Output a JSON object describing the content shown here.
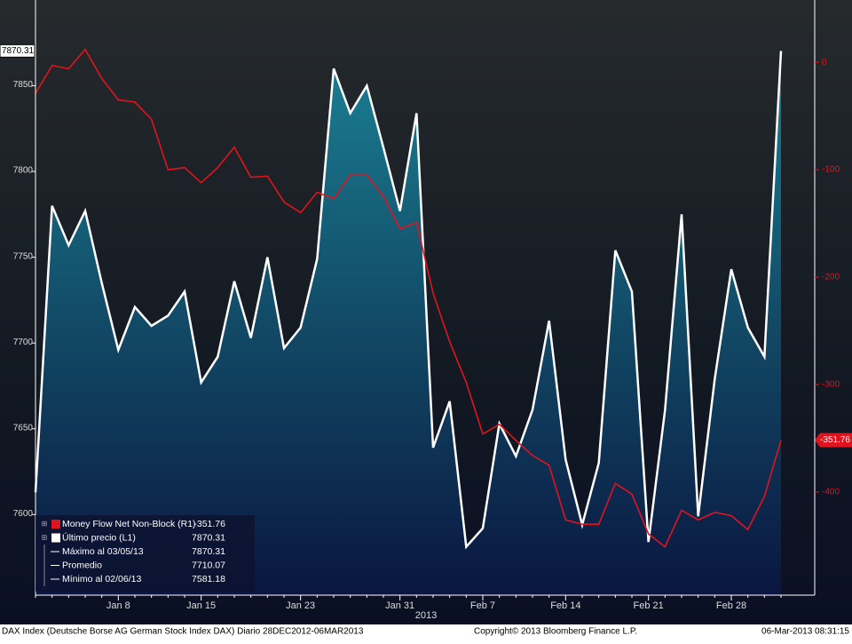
{
  "chart_data": {
    "type": "line",
    "categories": [
      null,
      null,
      null,
      null,
      null,
      "Jan 8",
      null,
      null,
      null,
      null,
      "Jan 15",
      null,
      null,
      null,
      null,
      null,
      "Jan 23",
      null,
      null,
      null,
      null,
      null,
      "Jan 31",
      null,
      null,
      null,
      null,
      "Feb 7",
      null,
      null,
      null,
      null,
      "Feb 14",
      null,
      null,
      null,
      null,
      "Feb 21",
      null,
      null,
      null,
      null,
      "Feb 28",
      null,
      null,
      null
    ],
    "year_label": "2013",
    "series": [
      {
        "name": "Money Flow Net Non-Block (R1)",
        "color": "#e0141e",
        "axis": "y2",
        "values": [
          -29,
          -3,
          -6,
          12,
          -15,
          -35,
          -37,
          -53,
          -100,
          -98,
          -112,
          -98,
          -79,
          -107,
          -106,
          -130,
          -140,
          -121,
          -127,
          -105,
          -105,
          -125,
          -155,
          -149,
          -215,
          -260,
          -298,
          -346,
          -337,
          -352,
          -366,
          -375,
          -426,
          -430,
          -430,
          -392,
          -402,
          -439,
          -451,
          -417,
          -426,
          -419,
          -422,
          -435,
          -404,
          -351.76
        ]
      },
      {
        "name": "Último precio (L1)",
        "color": "#ffffff",
        "axis": "y",
        "values": [
          7613,
          7780,
          7757,
          7777,
          7735,
          7696,
          7721,
          7710,
          7716,
          7730,
          7677,
          7692,
          7736,
          7703,
          7750,
          7697,
          7709,
          7749,
          7860,
          7834,
          7850,
          7814,
          7777,
          7834,
          7639,
          7666,
          7581.18,
          7592,
          7653,
          7634,
          7661,
          7713,
          7632,
          7594,
          7630,
          7754,
          7730,
          7584,
          7661,
          7775,
          7599,
          7679,
          7743,
          7709,
          7692,
          7870.31
        ]
      }
    ],
    "ylim": [
      7553,
      7900
    ],
    "yticks": [
      7600,
      7650,
      7700,
      7750,
      7800,
      7850
    ],
    "y2lim": [
      -496,
      58
    ],
    "y2ticks": [
      -400,
      -300,
      -200,
      -100,
      0
    ],
    "stats": [
      {
        "label": "Máximo al 03/05/13",
        "value": 7870.31
      },
      {
        "label": "Promedio",
        "value": 7710.07
      },
      {
        "label": "Mínimo al 02/06/13",
        "value": 7581.18
      }
    ],
    "footer": {
      "left": "DAX Index (Deutsche Borse AG German Stock Index DAX)  Diario 28DEC2012-06MAR2013",
      "center": "Copyright© 2013 Bloomberg Finance L.P.",
      "right": "06-Mar-2013 08:31:15"
    }
  }
}
